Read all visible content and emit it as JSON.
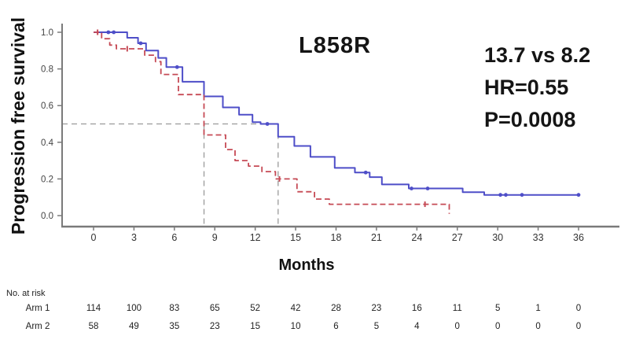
{
  "figure": {
    "title": "L858R",
    "annotation": {
      "median_comparison": "13.7 vs 8.2",
      "hazard_ratio": "HR=0.55",
      "p_value": "P=0.0008"
    }
  },
  "chart_data": {
    "type": "line",
    "subtype": "kaplan_meier_step",
    "title": "L858R",
    "xlabel": "Months",
    "ylabel": "Progression free survival",
    "xlim": [
      0,
      36
    ],
    "ylim": [
      0.0,
      1.0
    ],
    "x_ticks": [
      0,
      3,
      6,
      9,
      12,
      15,
      18,
      21,
      24,
      27,
      30,
      33,
      36
    ],
    "y_ticks": [
      1.0,
      0.8,
      0.6,
      0.4,
      0.2,
      0.0
    ],
    "grid": false,
    "legend_position": "none",
    "reference_lines": {
      "color": "#9a9a9a",
      "h_line": {
        "s": 0.5,
        "t_from": 0,
        "t_to": 13.7
      },
      "v_lines": [
        {
          "t": 8.2
        },
        {
          "t": 13.7
        }
      ]
    },
    "series": [
      {
        "name": "Arm 1",
        "median_months": 13.7,
        "color": "#4e4ec8",
        "line_style": "solid",
        "censor_style": "dot",
        "steps": [
          [
            0,
            1.0
          ],
          [
            2.5,
            0.97
          ],
          [
            3.3,
            0.94
          ],
          [
            3.9,
            0.9
          ],
          [
            4.8,
            0.86
          ],
          [
            5.4,
            0.81
          ],
          [
            6.6,
            0.73
          ],
          [
            8.2,
            0.65
          ],
          [
            9.6,
            0.59
          ],
          [
            10.8,
            0.55
          ],
          [
            11.8,
            0.51
          ],
          [
            12.4,
            0.5
          ],
          [
            13.7,
            0.43
          ],
          [
            14.9,
            0.38
          ],
          [
            16.1,
            0.32
          ],
          [
            17.9,
            0.26
          ],
          [
            19.4,
            0.235
          ],
          [
            20.5,
            0.21
          ],
          [
            21.4,
            0.17
          ],
          [
            23.4,
            0.148
          ],
          [
            27.4,
            0.128
          ],
          [
            29.0,
            0.113
          ],
          [
            36,
            0.113
          ]
        ],
        "censor_marks": [
          [
            1.1,
            1.0
          ],
          [
            1.5,
            1.0
          ],
          [
            3.5,
            0.94
          ],
          [
            6.2,
            0.81
          ],
          [
            12.9,
            0.5
          ],
          [
            20.2,
            0.235
          ],
          [
            23.6,
            0.148
          ],
          [
            24.8,
            0.148
          ],
          [
            30.2,
            0.113
          ],
          [
            30.6,
            0.113
          ],
          [
            31.8,
            0.113
          ],
          [
            36,
            0.113
          ]
        ]
      },
      {
        "name": "Arm 2",
        "median_months": 8.2,
        "color": "#c64a55",
        "line_style": "dashed",
        "censor_style": "tick",
        "steps": [
          [
            0,
            1.0
          ],
          [
            0.6,
            0.965
          ],
          [
            1.2,
            0.93
          ],
          [
            1.7,
            0.91
          ],
          [
            3.8,
            0.875
          ],
          [
            4.6,
            0.84
          ],
          [
            5.0,
            0.77
          ],
          [
            6.3,
            0.66
          ],
          [
            8.2,
            0.44
          ],
          [
            9.8,
            0.36
          ],
          [
            10.5,
            0.3
          ],
          [
            11.5,
            0.27
          ],
          [
            12.5,
            0.24
          ],
          [
            13.5,
            0.2
          ],
          [
            15.1,
            0.13
          ],
          [
            16.4,
            0.09
          ],
          [
            17.5,
            0.062
          ],
          [
            26.4,
            0.01
          ]
        ],
        "censor_marks": [
          [
            0.3,
            1.0
          ],
          [
            2.5,
            0.91
          ],
          [
            13.8,
            0.2
          ],
          [
            24.6,
            0.062
          ]
        ]
      }
    ]
  },
  "risk_table": {
    "header": "No. at risk",
    "time_points": [
      0,
      3,
      6,
      9,
      12,
      15,
      18,
      21,
      24,
      27,
      30,
      33,
      36
    ],
    "rows": [
      {
        "label": "Arm 1",
        "values": [
          114,
          100,
          83,
          65,
          52,
          42,
          28,
          23,
          16,
          11,
          5,
          1,
          0
        ]
      },
      {
        "label": "Arm 2",
        "values": [
          58,
          49,
          35,
          23,
          15,
          10,
          6,
          5,
          4,
          0,
          0,
          0,
          0
        ]
      }
    ]
  },
  "colors": {
    "arm1": "#4e4ec8",
    "arm2": "#c64a55",
    "reference": "#9a9a9a",
    "axis": "#7a7a7a",
    "text": "#111111"
  }
}
